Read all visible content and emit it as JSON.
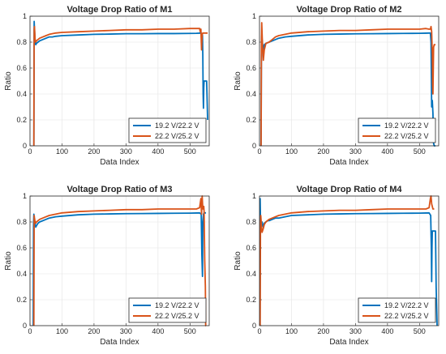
{
  "colors": {
    "s1": "#0072BD",
    "s2": "#D95319"
  },
  "chart_data": [
    {
      "type": "line",
      "title": "Voltage Drop Ratio of M1",
      "xlabel": "Data Index",
      "ylabel": "Ratio",
      "xlim": [
        0,
        560
      ],
      "ylim": [
        0,
        1
      ],
      "xticks": [
        "0",
        "100",
        "200",
        "300",
        "400",
        "500"
      ],
      "yticks": [
        "0",
        "0.2",
        "0.4",
        "0.6",
        "0.8",
        "1"
      ],
      "grid": true,
      "legend_position": "bottom-right",
      "series": [
        {
          "name": "19.2 V/22.2 V",
          "x": [
            12,
            13,
            14,
            16,
            18,
            20,
            25,
            30,
            40,
            50,
            60,
            70,
            80,
            100,
            150,
            200,
            250,
            300,
            350,
            400,
            450,
            500,
            520,
            535,
            538,
            539,
            540,
            541,
            542,
            543,
            544,
            545,
            546,
            548,
            549,
            550,
            552,
            553,
            555
          ],
          "y": [
            0,
            0.96,
            0.9,
            0.8,
            0.78,
            0.79,
            0.8,
            0.81,
            0.82,
            0.83,
            0.84,
            0.84,
            0.845,
            0.85,
            0.855,
            0.86,
            0.862,
            0.865,
            0.865,
            0.866,
            0.866,
            0.867,
            0.868,
            0.87,
            0.86,
            0.85,
            0.7,
            0.4,
            0.29,
            0.45,
            0.5,
            0.5,
            0.5,
            0.5,
            0.5,
            0.5,
            0.5,
            0.4,
            0.2
          ]
        },
        {
          "name": "22.2 V/25.2 V",
          "x": [
            12,
            13,
            14,
            16,
            18,
            20,
            25,
            30,
            40,
            50,
            60,
            80,
            100,
            150,
            200,
            250,
            300,
            350,
            400,
            450,
            500,
            520,
            530,
            532,
            534,
            536,
            538,
            540,
            545,
            550,
            555
          ],
          "y": [
            0,
            0.9,
            0.92,
            0.82,
            0.8,
            0.81,
            0.82,
            0.83,
            0.84,
            0.85,
            0.86,
            0.87,
            0.875,
            0.88,
            0.885,
            0.89,
            0.895,
            0.895,
            0.9,
            0.9,
            0.905,
            0.905,
            0.905,
            0.88,
            0.9,
            0.74,
            0.86,
            0.87,
            0.87,
            0.87,
            0.87
          ]
        }
      ]
    },
    {
      "type": "line",
      "title": "Voltage Drop Ratio of M2",
      "xlabel": "Data Index",
      "ylabel": "Ratio",
      "xlim": [
        0,
        560
      ],
      "ylim": [
        0,
        1
      ],
      "xticks": [
        "0",
        "100",
        "200",
        "300",
        "400",
        "500"
      ],
      "yticks": [
        "0",
        "0.2",
        "0.4",
        "0.6",
        "0.8",
        "1"
      ],
      "grid": true,
      "legend_position": "bottom-right",
      "series": [
        {
          "name": "19.2 V/22.2 V",
          "x": [
            5,
            6,
            7,
            9,
            12,
            15,
            20,
            30,
            40,
            50,
            60,
            80,
            100,
            150,
            200,
            250,
            300,
            350,
            400,
            450,
            500,
            520,
            530,
            534,
            536,
            538,
            540,
            542,
            544,
            546,
            548,
            550
          ],
          "y": [
            0,
            0.7,
            0.85,
            0.8,
            0.72,
            0.78,
            0.79,
            0.8,
            0.81,
            0.82,
            0.83,
            0.84,
            0.845,
            0.855,
            0.86,
            0.862,
            0.864,
            0.865,
            0.866,
            0.867,
            0.868,
            0.869,
            0.87,
            0.87,
            0.8,
            0.3,
            0.35,
            0.25,
            0.02,
            0.0,
            0.0,
            0.0
          ]
        },
        {
          "name": "22.2 V/25.2 V",
          "x": [
            5,
            6,
            7,
            9,
            12,
            15,
            20,
            30,
            40,
            50,
            60,
            80,
            100,
            150,
            200,
            250,
            300,
            350,
            400,
            450,
            500,
            520,
            530,
            534,
            536,
            538,
            540,
            541,
            542,
            544,
            546,
            548,
            550
          ],
          "y": [
            0,
            0.78,
            0.95,
            0.8,
            0.66,
            0.74,
            0.79,
            0.8,
            0.82,
            0.84,
            0.85,
            0.86,
            0.87,
            0.88,
            0.885,
            0.89,
            0.89,
            0.895,
            0.9,
            0.9,
            0.9,
            0.905,
            0.9,
            0.9,
            0.92,
            0.88,
            0.7,
            0.48,
            0.4,
            0.76,
            0.78,
            0.78,
            0.78
          ]
        }
      ]
    },
    {
      "type": "line",
      "title": "Voltage Drop Ratio of M3",
      "xlabel": "Data Index",
      "ylabel": "Ratio",
      "xlim": [
        0,
        560
      ],
      "ylim": [
        0,
        1
      ],
      "xticks": [
        "0",
        "100",
        "200",
        "300",
        "400",
        "500"
      ],
      "yticks": [
        "0",
        "0.2",
        "0.4",
        "0.6",
        "0.8",
        "1"
      ],
      "grid": true,
      "legend_position": "bottom-right",
      "series": [
        {
          "name": "19.2 V/22.2 V",
          "x": [
            10,
            11,
            12,
            14,
            18,
            20,
            25,
            30,
            40,
            50,
            60,
            80,
            100,
            150,
            200,
            250,
            300,
            350,
            400,
            450,
            500,
            520,
            530,
            535,
            537,
            539,
            540,
            542,
            544,
            546,
            550
          ],
          "y": [
            0,
            0.78,
            0.86,
            0.8,
            0.76,
            0.77,
            0.79,
            0.8,
            0.81,
            0.82,
            0.83,
            0.84,
            0.845,
            0.855,
            0.86,
            0.862,
            0.864,
            0.865,
            0.866,
            0.867,
            0.868,
            0.869,
            0.87,
            0.86,
            0.55,
            0.38,
            0.8,
            0.86,
            0.87,
            0.87,
            0.87
          ]
        },
        {
          "name": "22.2 V/25.2 V",
          "x": [
            12,
            13,
            14,
            16,
            18,
            20,
            25,
            30,
            40,
            50,
            60,
            80,
            100,
            150,
            200,
            250,
            300,
            350,
            400,
            450,
            500,
            520,
            530,
            534,
            536,
            538,
            540,
            542,
            543,
            544,
            546,
            548,
            549,
            550
          ],
          "y": [
            0,
            0.85,
            0.83,
            0.8,
            0.79,
            0.8,
            0.81,
            0.82,
            0.83,
            0.84,
            0.85,
            0.86,
            0.87,
            0.88,
            0.885,
            0.89,
            0.895,
            0.895,
            0.9,
            0.9,
            0.9,
            0.9,
            0.91,
            0.98,
            0.86,
            1.0,
            0.9,
            0.9,
            0.92,
            0.88,
            0.5,
            0.3,
            0.0,
            0.0
          ]
        }
      ]
    },
    {
      "type": "line",
      "title": "Voltage Drop Ratio of M4",
      "xlabel": "Data Index",
      "ylabel": "Ratio",
      "xlim": [
        0,
        560
      ],
      "ylim": [
        0,
        1
      ],
      "xticks": [
        "0",
        "100",
        "200",
        "300",
        "400",
        "500"
      ],
      "yticks": [
        "0",
        "0.2",
        "0.4",
        "0.6",
        "0.8",
        "1"
      ],
      "grid": true,
      "legend_position": "bottom-right",
      "series": [
        {
          "name": "19.2 V/22.2 V",
          "x": [
            1,
            2,
            3,
            5,
            8,
            12,
            15,
            20,
            25,
            30,
            40,
            50,
            60,
            80,
            100,
            150,
            200,
            250,
            300,
            350,
            400,
            450,
            500,
            520,
            530,
            535,
            537,
            538,
            539,
            540,
            542,
            544,
            546,
            548,
            550,
            552,
            555
          ],
          "y": [
            0,
            0.98,
            0.82,
            0.75,
            0.8,
            0.76,
            0.79,
            0.8,
            0.81,
            0.81,
            0.82,
            0.83,
            0.83,
            0.84,
            0.85,
            0.855,
            0.86,
            0.862,
            0.864,
            0.865,
            0.866,
            0.867,
            0.868,
            0.869,
            0.87,
            0.85,
            0.6,
            0.34,
            0.6,
            0.73,
            0.73,
            0.73,
            0.73,
            0.73,
            0.73,
            0.3,
            0.0
          ]
        },
        {
          "name": "22.2 V/25.2 V",
          "x": [
            2,
            3,
            4,
            6,
            8,
            12,
            15,
            20,
            30,
            40,
            50,
            60,
            80,
            100,
            150,
            200,
            250,
            300,
            350,
            400,
            450,
            500,
            520,
            530,
            534,
            536,
            538,
            540,
            542,
            544,
            546
          ],
          "y": [
            0,
            0.7,
            0.85,
            0.78,
            0.72,
            0.75,
            0.78,
            0.8,
            0.82,
            0.83,
            0.84,
            0.85,
            0.86,
            0.87,
            0.88,
            0.885,
            0.89,
            0.89,
            0.895,
            0.9,
            0.9,
            0.9,
            0.9,
            0.91,
            0.98,
            1.0,
            0.94,
            0.92,
            0.9,
            0.9,
            0.9
          ]
        }
      ]
    }
  ]
}
